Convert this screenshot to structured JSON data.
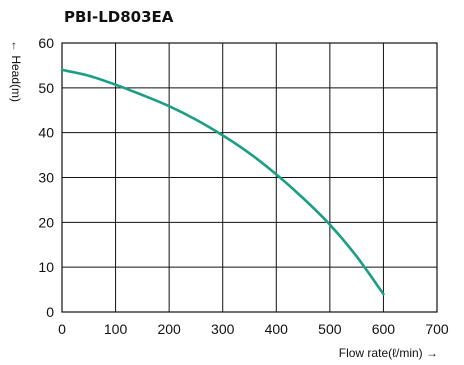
{
  "chart_data": {
    "type": "line",
    "title": "PBI-LD803EA",
    "xlabel": "Flow rate(ℓ/min) →",
    "ylabel": "← Head(m)",
    "xlim": [
      0,
      700
    ],
    "ylim": [
      0,
      60
    ],
    "x_ticks": [
      "0",
      "100",
      "200",
      "300",
      "400",
      "500",
      "600",
      "700"
    ],
    "y_ticks": [
      "0",
      "10",
      "20",
      "30",
      "40",
      "50",
      "60"
    ],
    "grid": true,
    "legend": "none",
    "series": [
      {
        "color": "#1a9e84",
        "x": [
          0,
          50,
          100,
          150,
          200,
          250,
          300,
          350,
          400,
          450,
          500,
          550,
          600
        ],
        "y": [
          54,
          52.7,
          50.7,
          48.4,
          45.9,
          42.9,
          39.4,
          35.4,
          30.7,
          25.4,
          19.5,
          12.4,
          4
        ]
      }
    ]
  }
}
